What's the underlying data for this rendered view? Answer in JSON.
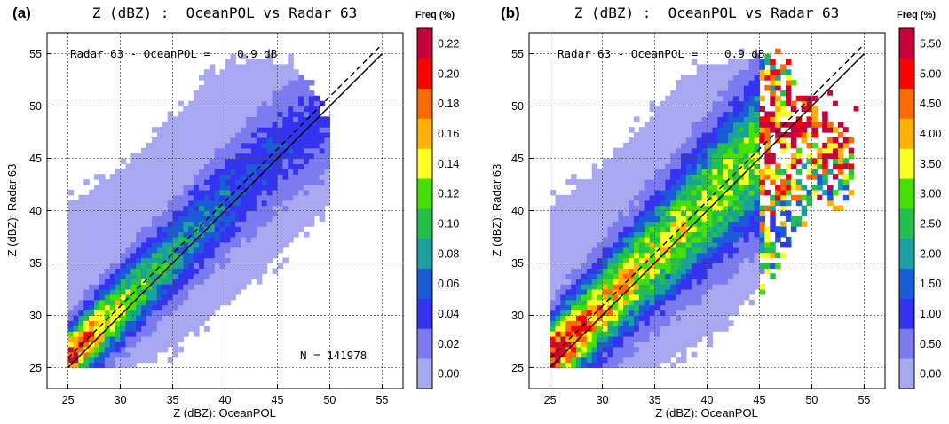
{
  "chart_data": [
    {
      "type": "heatmap",
      "panel_label": "(a)",
      "title": "Z (dBZ) :  OceanPOL vs Radar 63",
      "xlabel": "Z (dBZ): OceanPOL",
      "ylabel": "Z (dBZ): Radar 63",
      "xlim": [
        23,
        57
      ],
      "ylim": [
        23,
        57
      ],
      "xticks": [
        "25",
        "30",
        "35",
        "40",
        "45",
        "50",
        "55"
      ],
      "yticks": [
        "25",
        "30",
        "35",
        "40",
        "45",
        "50",
        "55"
      ],
      "grid": true,
      "bin_width_dbz": 0.5,
      "bias_annotation": "Radar 63 - OceanPOL =    0.9 dB",
      "count_annotation": "N = 141978",
      "reference_lines": [
        {
          "style": "solid",
          "from": [
            25,
            25
          ],
          "to": [
            55,
            55
          ]
        },
        {
          "style": "dashed",
          "from": [
            25,
            25.9
          ],
          "to": [
            55,
            55.9
          ]
        }
      ],
      "colorbar": {
        "title": "Freq (%)",
        "tick_labels": [
          "0.00",
          "0.02",
          "0.04",
          "0.06",
          "0.08",
          "0.10",
          "0.12",
          "0.14",
          "0.16",
          "0.18",
          "0.20",
          "0.22"
        ],
        "levels": [
          0.0,
          0.02,
          0.04,
          0.06,
          0.08,
          0.1,
          0.12,
          0.14,
          0.16,
          0.18,
          0.2,
          0.22,
          0.24
        ]
      },
      "distribution": {
        "x_range": [
          25,
          50
        ],
        "lower_edge_points": [
          [
            25,
            25
          ],
          [
            27,
            25
          ],
          [
            31,
            25
          ],
          [
            35,
            27
          ],
          [
            40,
            31
          ],
          [
            45,
            35.5
          ],
          [
            50,
            41
          ]
        ],
        "upper_edge_points": [
          [
            25,
            40.5
          ],
          [
            28,
            42.5
          ],
          [
            32,
            45.5
          ],
          [
            36,
            49.5
          ],
          [
            38,
            52.5
          ],
          [
            43,
            54.5
          ],
          [
            46,
            54
          ],
          [
            48,
            52
          ],
          [
            50,
            47.5
          ]
        ],
        "ridge_points": [
          [
            25,
            25.8
          ],
          [
            30,
            30.8
          ],
          [
            35,
            35.8
          ],
          [
            40,
            40.8
          ],
          [
            45,
            45.8
          ],
          [
            50,
            49.5
          ]
        ],
        "peak_freq": 0.23,
        "background_freq": 0.01
      }
    },
    {
      "type": "heatmap",
      "panel_label": "(b)",
      "title": "Z (dBZ) :  OceanPOL vs Radar 63",
      "xlabel": "Z (dBZ): OceanPOL",
      "ylabel": "Z (dBZ): Radar 63",
      "xlim": [
        23,
        57
      ],
      "ylim": [
        23,
        57
      ],
      "xticks": [
        "25",
        "30",
        "35",
        "40",
        "45",
        "50",
        "55"
      ],
      "yticks": [
        "25",
        "30",
        "35",
        "40",
        "45",
        "50",
        "55"
      ],
      "grid": true,
      "bin_width_dbz": 0.5,
      "bias_annotation": "Radar 63 - OceanPOL =    0.9 dB",
      "reference_lines": [
        {
          "style": "solid",
          "from": [
            25,
            25
          ],
          "to": [
            55,
            55
          ]
        },
        {
          "style": "dashed",
          "from": [
            25,
            25.9
          ],
          "to": [
            55,
            55.9
          ]
        }
      ],
      "colorbar": {
        "title": "Freq (%)",
        "tick_labels": [
          "0.00",
          "0.50",
          "1.00",
          "1.50",
          "2.00",
          "2.50",
          "3.00",
          "3.50",
          "4.00",
          "4.50",
          "5.00",
          "5.50"
        ],
        "levels": [
          0.0,
          0.5,
          1.0,
          1.5,
          2.0,
          2.5,
          3.0,
          3.5,
          4.0,
          4.5,
          5.0,
          5.5,
          6.0
        ]
      },
      "distribution": {
        "x_range": [
          25,
          54
        ],
        "lower_edge_points": [
          [
            25,
            25
          ],
          [
            35,
            25
          ],
          [
            40,
            28
          ],
          [
            45,
            33
          ],
          [
            48,
            37
          ],
          [
            50,
            41
          ]
        ],
        "upper_edge_points": [
          [
            25,
            40.5
          ],
          [
            30,
            44
          ],
          [
            35,
            49.5
          ],
          [
            38,
            53
          ],
          [
            43,
            54.5
          ],
          [
            46,
            55
          ],
          [
            48,
            53
          ],
          [
            50,
            50
          ],
          [
            54,
            47
          ]
        ],
        "ridge_points": [
          [
            25,
            25.8
          ],
          [
            30,
            30.8
          ],
          [
            35,
            35.8
          ],
          [
            40,
            40.8
          ],
          [
            45,
            45.8
          ],
          [
            50,
            49.8
          ]
        ],
        "peak_freq": 5.9,
        "background_freq": 0.3
      }
    }
  ]
}
